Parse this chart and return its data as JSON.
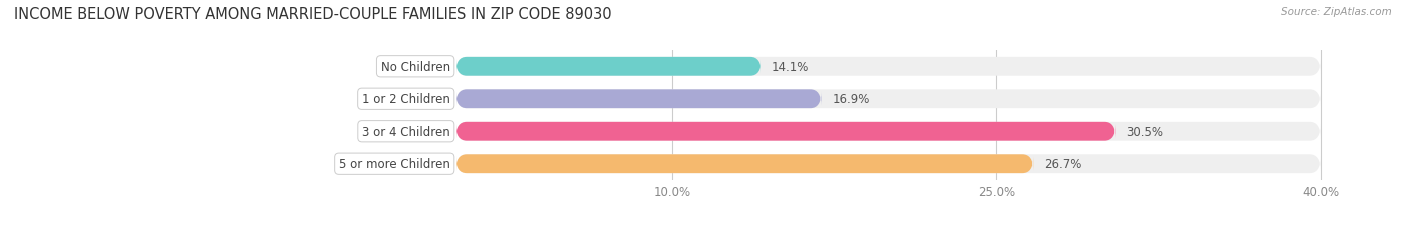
{
  "title": "INCOME BELOW POVERTY AMONG MARRIED-COUPLE FAMILIES IN ZIP CODE 89030",
  "source": "Source: ZipAtlas.com",
  "categories": [
    "No Children",
    "1 or 2 Children",
    "3 or 4 Children",
    "5 or more Children"
  ],
  "values": [
    14.1,
    16.9,
    30.5,
    26.7
  ],
  "bar_colors": [
    "#6DCFCA",
    "#A9A9D4",
    "#F06292",
    "#F5B96E"
  ],
  "bar_bg_color": "#EFEFEF",
  "label_color": "#444444",
  "value_color": "#555555",
  "xlim": [
    -12,
    42
  ],
  "data_xlim": [
    0,
    40
  ],
  "xticks": [
    10.0,
    25.0,
    40.0
  ],
  "xtick_labels": [
    "10.0%",
    "25.0%",
    "40.0%"
  ],
  "title_fontsize": 10.5,
  "label_fontsize": 8.5,
  "value_fontsize": 8.5,
  "bar_height": 0.58,
  "fig_width": 14.06,
  "fig_height": 2.32
}
